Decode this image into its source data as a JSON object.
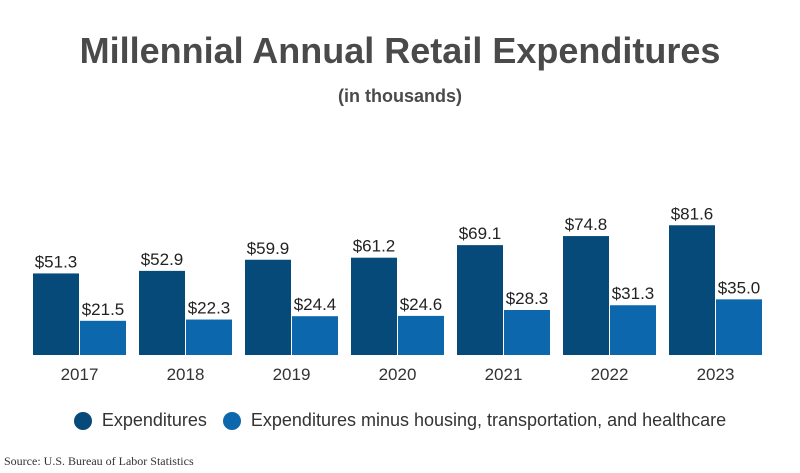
{
  "title": "Millennial Annual Retail Expenditures",
  "subtitle": "(in thousands)",
  "source": "Source: U.S. Bureau of Labor Statistics",
  "colors": {
    "series1": "#064a7a",
    "series2": "#0d67ad"
  },
  "legend": [
    {
      "label": "Expenditures",
      "color": "#064a7a"
    },
    {
      "label": "Expenditures minus housing, transportation, and healthcare",
      "color": "#0d67ad"
    }
  ],
  "chart_data": {
    "type": "bar",
    "title": "Millennial Annual Retail Expenditures",
    "subtitle": "(in thousands)",
    "categories": [
      "2017",
      "2018",
      "2019",
      "2020",
      "2021",
      "2022",
      "2023"
    ],
    "series": [
      {
        "name": "Expenditures",
        "values": [
          51.3,
          52.9,
          59.9,
          61.2,
          69.1,
          74.8,
          81.6
        ],
        "labels": [
          "$51.3",
          "$52.9",
          "$59.9",
          "$61.2",
          "$69.1",
          "$74.8",
          "$81.6"
        ],
        "color": "#064a7a"
      },
      {
        "name": "Expenditures minus housing, transportation, and healthcare",
        "values": [
          21.5,
          22.3,
          24.4,
          24.6,
          28.3,
          31.3,
          35.0
        ],
        "labels": [
          "$21.5",
          "$22.3",
          "$24.4",
          "$24.6",
          "$28.3",
          "$31.3",
          "$35.0"
        ],
        "color": "#0d67ad"
      }
    ],
    "ylim": [
      0,
      100
    ],
    "grid": false,
    "legend_position": "bottom"
  }
}
